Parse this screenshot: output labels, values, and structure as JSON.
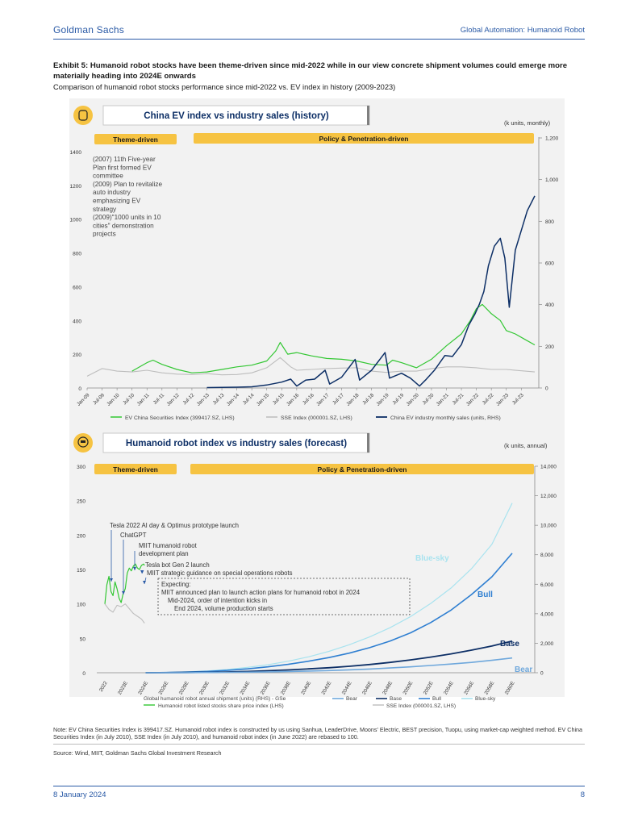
{
  "header": {
    "brand": "Goldman Sachs",
    "report_title": "Global Automation: Humanoid Robot"
  },
  "exhibit": {
    "title": "Exhibit 5: Humanoid robot stocks have been theme-driven since mid-2022 while in our view concrete shipment volumes could emerge more materially heading into 2024E onwards",
    "subtitle": "Comparison of humanoid robot stocks performance since mid-2022 vs. EV index in history (2009-2023)"
  },
  "colors": {
    "green": "#33c733",
    "gray": "#bdbdbd",
    "navy": "#0d2f66",
    "blue_sky": "#a9e3ef",
    "bull": "#2f7fd1",
    "base": "#0d2f66",
    "bear": "#6fa8dc",
    "banner": "#f6c342",
    "accent": "#2a5aa6"
  },
  "chart_data": [
    {
      "type": "line",
      "title": "China EV index vs industry sales (history)",
      "unit_note": "(k units, monthly)",
      "banners": [
        "Theme-driven",
        "Policy & Penetration-driven"
      ],
      "ylim_left": [
        0,
        1400
      ],
      "yticks_left": [
        "0",
        "200",
        "400",
        "600",
        "800",
        "1000",
        "1200",
        "1400"
      ],
      "ylim_right": [
        0,
        1200
      ],
      "yticks_right": [
        "0",
        "200",
        "400",
        "600",
        "800",
        "1,000",
        "1,200"
      ],
      "x_tick_labels": [
        "Jan-09",
        "Jul-09",
        "Jan-10",
        "Jul-10",
        "Jan-11",
        "Jul-11",
        "Jan-12",
        "Jul-12",
        "Jan-13",
        "Jul-13",
        "Jan-14",
        "Jul-14",
        "Jan-15",
        "Jul-15",
        "Jan-16",
        "Jul-16",
        "Jan-17",
        "Jul-17",
        "Jan-18",
        "Jul-18",
        "Jan-19",
        "Jul-19",
        "Jan-20",
        "Jul-20",
        "Jan-21",
        "Jul-21",
        "Jan-22",
        "Jul-22",
        "Jan-23",
        "Jul-23"
      ],
      "annotation_lines": [
        "(2007) 11th Five-year",
        "Plan first formed EV",
        "committee",
        "(2009) Plan to revitalize",
        "auto industry",
        "emphasizing EV",
        "strategy",
        "(2009)\"1000 units in 10",
        "cities\" demonstration",
        "projects"
      ],
      "series": [
        {
          "name": "EV China Securities Index (399417.SZ, LHS)",
          "axis": "left",
          "t": [
            2010.5,
            2011.0,
            2011.2,
            2011.5,
            2012.0,
            2012.5,
            2013.0,
            2013.5,
            2014.0,
            2014.5,
            2015.0,
            2015.3,
            2015.45,
            2015.7,
            2016.0,
            2016.5,
            2017.0,
            2017.5,
            2018.0,
            2018.5,
            2019.0,
            2019.2,
            2019.5,
            2020.0,
            2020.5,
            2021.0,
            2021.5,
            2021.8,
            2022.0,
            2022.2,
            2022.5,
            2022.8,
            2023.0,
            2023.3,
            2023.6,
            2023.95
          ],
          "values": [
            100,
            150,
            165,
            140,
            110,
            90,
            95,
            110,
            125,
            135,
            160,
            220,
            270,
            200,
            210,
            190,
            175,
            170,
            160,
            140,
            135,
            165,
            150,
            120,
            170,
            250,
            320,
            400,
            470,
            495,
            440,
            400,
            340,
            320,
            290,
            255
          ]
        },
        {
          "name": "SSE Index (000001.SZ, LHS)",
          "axis": "left",
          "t": [
            2009.0,
            2009.5,
            2010.0,
            2010.5,
            2011.0,
            2011.5,
            2012.0,
            2012.5,
            2013.0,
            2013.5,
            2014.0,
            2014.5,
            2015.0,
            2015.45,
            2015.8,
            2016.0,
            2016.5,
            2017.0,
            2017.5,
            2018.0,
            2018.5,
            2019.0,
            2019.5,
            2020.0,
            2020.5,
            2021.0,
            2021.5,
            2022.0,
            2022.5,
            2023.0,
            2023.95
          ],
          "values": [
            70,
            115,
            100,
            95,
            105,
            90,
            82,
            80,
            85,
            78,
            80,
            90,
            120,
            180,
            125,
            105,
            110,
            115,
            118,
            120,
            100,
            92,
            100,
            100,
            115,
            125,
            125,
            120,
            110,
            110,
            95
          ]
        },
        {
          "name": "China EV industry monthly sales (units, RHS)",
          "axis": "right",
          "t": [
            2013.0,
            2013.5,
            2014.0,
            2014.5,
            2015.0,
            2015.5,
            2015.8,
            2016.0,
            2016.3,
            2016.6,
            2016.95,
            2017.1,
            2017.5,
            2017.95,
            2018.1,
            2018.5,
            2018.95,
            2019.1,
            2019.5,
            2019.8,
            2020.1,
            2020.3,
            2020.6,
            2020.95,
            2021.2,
            2021.5,
            2021.75,
            2021.95,
            2022.1,
            2022.25,
            2022.4,
            2022.6,
            2022.8,
            2022.95,
            2023.1,
            2023.3,
            2023.5,
            2023.7,
            2023.95
          ],
          "values": [
            2,
            3,
            4,
            6,
            15,
            30,
            45,
            10,
            40,
            45,
            90,
            20,
            55,
            145,
            40,
            90,
            180,
            50,
            75,
            50,
            10,
            40,
            90,
            165,
            160,
            220,
            320,
            375,
            425,
            490,
            620,
            720,
            760,
            660,
            410,
            700,
            800,
            900,
            975
          ]
        }
      ],
      "legend": [
        "EV China Securities Index (399417.SZ, LHS)",
        "SSE Index (000001.SZ, LHS)",
        "China EV industry monthly sales (units, RHS)"
      ]
    },
    {
      "type": "line",
      "title": "Humanoid robot index vs industry sales (forecast)",
      "unit_note": "(k units, annual)",
      "banners": [
        "Theme-driven",
        "Policy & Penetration-driven"
      ],
      "ylim_left": [
        0,
        300
      ],
      "yticks_left": [
        "0",
        "50",
        "100",
        "150",
        "200",
        "250",
        "300"
      ],
      "ylim_right": [
        0,
        14000
      ],
      "yticks_right": [
        "0",
        "2,000",
        "4,000",
        "6,000",
        "8,000",
        "10,000",
        "12,000",
        "14,000"
      ],
      "x_tick_labels": [
        "2022",
        "2023E",
        "2024E",
        "2026E",
        "2028E",
        "2030E",
        "2032E",
        "2034E",
        "2036E",
        "2038E",
        "2040E",
        "2042E",
        "2044E",
        "2046E",
        "2048E",
        "2050E",
        "2052E",
        "2054E",
        "2056E",
        "2058E",
        "2060E"
      ],
      "x_years": [
        2022,
        2023,
        2024,
        2026,
        2028,
        2030,
        2032,
        2034,
        2036,
        2038,
        2040,
        2042,
        2044,
        2046,
        2048,
        2050,
        2052,
        2054,
        2056,
        2058,
        2060
      ],
      "annotations": [
        "Tesla 2022 AI day & Optimus prototype launch",
        "ChatGPT",
        "MIIT humanoid robot",
        "development plan",
        "Tesla bot Gen 2 launch",
        "MIIT strategic guidance on special operations robots"
      ],
      "expecting_box": [
        "Expecting:",
        "MIIT announced plan to launch action plans for humanoid robot in 2024",
        "Mid-2024, order of intention kicks in",
        "End 2024, volume production starts"
      ],
      "scenario_labels": [
        "Blue-sky",
        "Bull",
        "Base",
        "Bear"
      ],
      "scenario_x": [
        2024,
        2026,
        2028,
        2030,
        2032,
        2034,
        2036,
        2038,
        2040,
        2042,
        2044,
        2046,
        2048,
        2050,
        2052,
        2054,
        2056,
        2058,
        2060
      ],
      "series": [
        {
          "name": "Blue-sky",
          "axis": "right",
          "values": [
            0,
            20,
            60,
            120,
            220,
            360,
            540,
            780,
            1080,
            1450,
            1900,
            2430,
            3050,
            3800,
            4700,
            5750,
            7050,
            8700,
            11500
          ]
        },
        {
          "name": "Bull",
          "axis": "right",
          "values": [
            0,
            15,
            45,
            90,
            160,
            260,
            400,
            570,
            780,
            1030,
            1330,
            1700,
            2150,
            2700,
            3400,
            4250,
            5300,
            6500,
            8100
          ]
        },
        {
          "name": "Base",
          "axis": "right",
          "values": [
            0,
            5,
            15,
            30,
            55,
            90,
            135,
            190,
            260,
            340,
            440,
            560,
            700,
            870,
            1060,
            1280,
            1530,
            1810,
            2150
          ]
        },
        {
          "name": "Bear",
          "axis": "right",
          "values": [
            0,
            3,
            8,
            15,
            25,
            40,
            60,
            85,
            115,
            150,
            195,
            250,
            320,
            400,
            490,
            590,
            700,
            840,
            1000
          ]
        },
        {
          "name": "Humanoid robot listed stocks share price index (LHS)",
          "axis": "left",
          "t": [
            2022.0,
            2022.1,
            2022.2,
            2022.3,
            2022.4,
            2022.5,
            2022.6,
            2022.7,
            2022.8,
            2022.9,
            2023.0,
            2023.1,
            2023.2,
            2023.3,
            2023.4,
            2023.5,
            2023.6,
            2023.7,
            2023.8,
            2023.9,
            2023.95
          ],
          "values": [
            100,
            128,
            140,
            118,
            112,
            132,
            122,
            108,
            102,
            115,
            122,
            145,
            152,
            148,
            155,
            158,
            152,
            150,
            156,
            158,
            156
          ]
        },
        {
          "name": "SSE Index (000001.SZ, LHS)",
          "axis": "left",
          "t": [
            2022.0,
            2022.2,
            2022.4,
            2022.6,
            2022.8,
            2023.0,
            2023.2,
            2023.4,
            2023.6,
            2023.8,
            2023.95
          ],
          "values": [
            100,
            92,
            88,
            98,
            96,
            100,
            93,
            86,
            82,
            78,
            72
          ]
        }
      ],
      "legend": [
        "Global humanoid robot annual shipment (units) (RHS) - GSe",
        "Bear",
        "Base",
        "Bull",
        "Blue-sky",
        "Humanoid robot listed stocks share price index (LHS)",
        "SSE Index (000001.SZ, LHS)"
      ]
    }
  ],
  "footnote": "Note: EV China Securities Index is 399417.SZ. Humanoid robot index is constructed by us using Sanhua, LeaderDrive, Moons' Electric, BEST precision, Tuopu, using market-cap weighted method. EV China Securities Index (in July 2010), SSE Index (in July 2010), and humanoid robot index (in June 2022) are rebased to 100.",
  "source": "Source: Wind, MIIT, Goldman Sachs Global Investment Research",
  "footer": {
    "date": "8 January 2024",
    "page": "8"
  }
}
